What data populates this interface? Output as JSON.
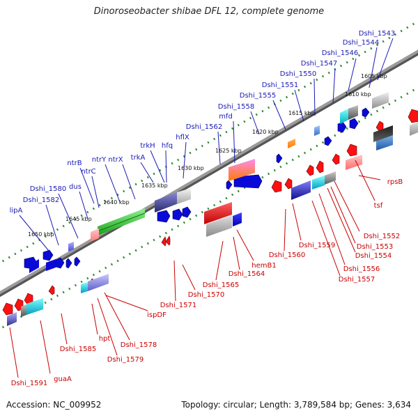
{
  "title": "Dinoroseobacter shibae DFL 12, complete genome",
  "footer": {
    "accession": "Accession: NC_009952",
    "genome_info": "Topology: circular; Length: 3,789,584 bp; Genes: 3,634"
  },
  "colors": {
    "top_strand_label": "#1a1ab5",
    "bottom_strand_label": "#c80000",
    "backbone": "#777777",
    "dots": "#2a8a2a"
  },
  "scale_labels": [
    "1605 kbp",
    "1610 kbp",
    "1615 kbp",
    "1620 kbp",
    "1625 kbp",
    "1630 kbp",
    "1635 kbp",
    "1640 kbp",
    "1645 kbp",
    "1650 kbp"
  ],
  "top_genes": [
    "Dshi_1543",
    "Dshi_1544",
    "Dshi_1546",
    "Dshi_1547",
    "Dshi_1550",
    "Dshi_1551",
    "Dshi_1555",
    "Dshi_1558",
    "mfd",
    "Dshi_1562",
    "hflX",
    "trkH",
    "hfq",
    "trkA",
    "ntrX",
    "ntrY",
    "ntrB",
    "ntrC",
    "dus",
    "Dshi_1580",
    "Dshi_1582",
    "lipA"
  ],
  "bottom_genes": [
    "rpsB",
    "tsf",
    "Dshi_1552",
    "Dshi_1553",
    "Dshi_1554",
    "Dshi_1556",
    "Dshi_1557",
    "Dshi_1559",
    "Dshi_1560",
    "hemB1",
    "Dshi_1564",
    "Dshi_1565",
    "Dshi_1570",
    "Dshi_1571",
    "ispDF",
    "Dshi_1578",
    "Dshi_1579",
    "hpt",
    "Dshi_1585",
    "guaA",
    "Dshi_1591"
  ]
}
